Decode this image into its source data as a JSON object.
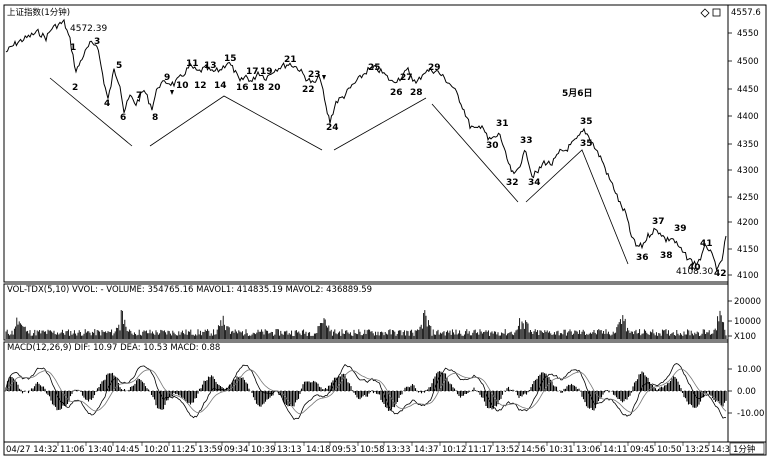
{
  "window": {
    "title": "上证指数(1分钟)",
    "high_label": "4572.39",
    "low_label": "4108.30",
    "date_note": "5月6日",
    "corner_value": "4557.6",
    "period_button": "1分钟",
    "corner_icons": [
      "diamond-icon",
      "square-icon"
    ]
  },
  "price_panel": {
    "y_ticks": [
      "4550",
      "4500",
      "4450",
      "4400",
      "4350",
      "4300",
      "4250",
      "4200",
      "4150",
      "4100"
    ]
  },
  "volume_panel": {
    "header": "VOL-TDX(5,10)  VVOL: -    VOLUME: 354765.16  MAVOL1: 414835.19  MAVOL2: 436889.59",
    "y_ticks": [
      "20000",
      "10000",
      "X100"
    ]
  },
  "macd_panel": {
    "header": "MACD(12,26,9)  DIF: 10.97  DEA: 10.53  MACD: 0.88",
    "y_ticks": [
      "10.00",
      "0.00",
      "-10.00"
    ]
  },
  "time_axis": [
    "04/27 14:32",
    "11:06",
    "13:40",
    "14:45",
    "10:20",
    "11:25",
    "13:59",
    "09:34",
    "10:39",
    "13:13",
    "14:18",
    "09:53",
    "10:58",
    "13:33",
    "14:37",
    "10:12",
    "11:17",
    "13:52",
    "14:56",
    "10:31",
    "13:06",
    "14:11",
    "09:45",
    "10:50",
    "13:25",
    "14:30"
  ],
  "wave_labels": [
    "1",
    "2",
    "3",
    "4",
    "5",
    "6",
    "7",
    "8",
    "9",
    "10",
    "11",
    "12",
    "13",
    "14",
    "15",
    "16",
    "17",
    "18",
    "19",
    "20",
    "21",
    "22",
    "23",
    "24",
    "25",
    "26",
    "27",
    "28",
    "29",
    "30",
    "31",
    "32",
    "33",
    "34",
    "35",
    "35",
    "36",
    "37",
    "38",
    "39",
    "40",
    "41",
    "42"
  ]
}
